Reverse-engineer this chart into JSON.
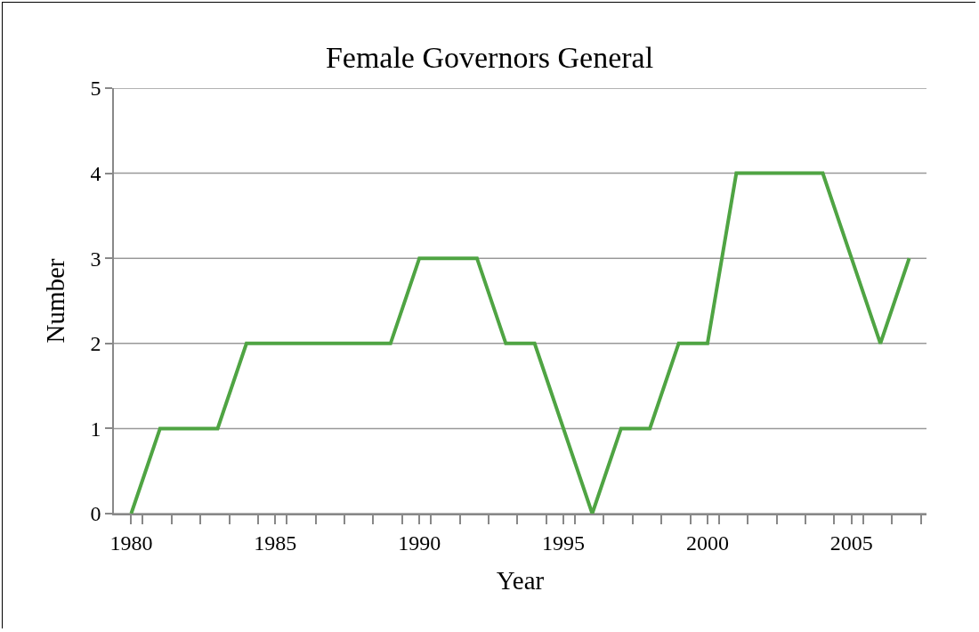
{
  "chart_data": {
    "type": "line",
    "title": "Female Governors General",
    "xlabel": "Year",
    "ylabel": "Number",
    "x": [
      1980,
      1981,
      1982,
      1983,
      1984,
      1985,
      1986,
      1987,
      1988,
      1989,
      1990,
      1991,
      1992,
      1993,
      1994,
      1995,
      1996,
      1997,
      1998,
      1999,
      2000,
      2001,
      2002,
      2003,
      2004,
      2005,
      2006,
      2007
    ],
    "series": [
      {
        "color": "#4fa443",
        "values": [
          0,
          1,
          1,
          1,
          2,
          2,
          2,
          2,
          2,
          2,
          3,
          3,
          3,
          2,
          2,
          1,
          0,
          1,
          1,
          2,
          2,
          4,
          4,
          4,
          4,
          3,
          2,
          3
        ]
      }
    ],
    "xlim": [
      1979.4,
      2007.6
    ],
    "xticks": [
      1980,
      1985,
      1990,
      1995,
      2000,
      2005,
      {
        "value": 1980.4,
        "label": null
      },
      {
        "value": 1981.4,
        "label": null
      },
      {
        "value": 1982.4,
        "label": null
      },
      {
        "value": 1983.4,
        "label": null
      },
      {
        "value": 1984.4,
        "label": null
      },
      {
        "value": 1985.4,
        "label": null
      },
      {
        "value": 1986.4,
        "label": null
      },
      {
        "value": 1987.4,
        "label": null
      },
      {
        "value": 1988.4,
        "label": null
      },
      {
        "value": 1989.4,
        "label": null
      },
      {
        "value": 1990.4,
        "label": null
      },
      {
        "value": 1991.4,
        "label": null
      },
      {
        "value": 1992.4,
        "label": null
      },
      {
        "value": 1993.4,
        "label": null
      },
      {
        "value": 1994.4,
        "label": null
      },
      {
        "value": 1995.4,
        "label": null
      },
      {
        "value": 1996.4,
        "label": null
      },
      {
        "value": 1997.4,
        "label": null
      },
      {
        "value": 1998.4,
        "label": null
      },
      {
        "value": 1999.4,
        "label": null
      },
      {
        "value": 2000.4,
        "label": null
      },
      {
        "value": 2001.4,
        "label": null
      },
      {
        "value": 2002.4,
        "label": null
      },
      {
        "value": 2003.4,
        "label": null
      },
      {
        "value": 2004.4,
        "label": null
      },
      {
        "value": 2005.4,
        "label": null
      },
      {
        "value": 2006.4,
        "label": null
      },
      {
        "value": 2007.4,
        "label": null
      }
    ],
    "ylim": [
      0,
      5
    ],
    "yticks": [
      0,
      1,
      2,
      3,
      4,
      5
    ],
    "grid": "y",
    "marker": "none",
    "line_style": "solid"
  }
}
